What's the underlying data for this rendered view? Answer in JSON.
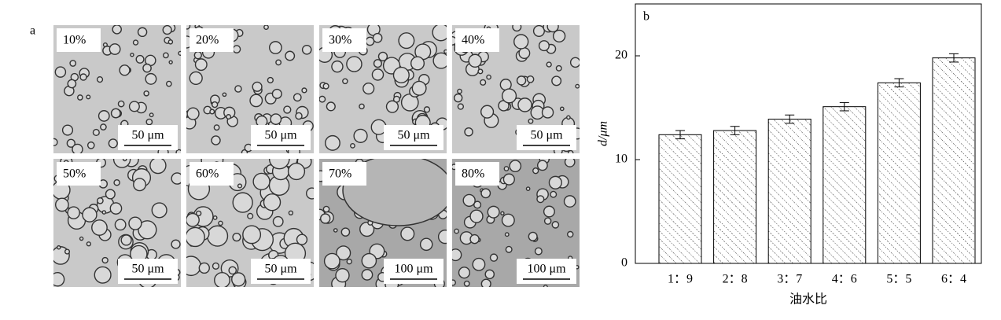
{
  "panel_a": {
    "label": "a",
    "tiles": [
      {
        "label": "10%",
        "scale": "50 μm"
      },
      {
        "label": "20%",
        "scale": "50 μm"
      },
      {
        "label": "30%",
        "scale": "50 μm"
      },
      {
        "label": "40%",
        "scale": "50 μm"
      },
      {
        "label": "50%",
        "scale": "50 μm"
      },
      {
        "label": "60%",
        "scale": "50 μm"
      },
      {
        "label": "70%",
        "scale": "100 μm"
      },
      {
        "label": "80%",
        "scale": "100 μm"
      }
    ]
  },
  "chart_data": {
    "type": "bar",
    "panel_label": "b",
    "categories": [
      "1：9",
      "2：8",
      "3：7",
      "4：6",
      "5：5",
      "6：4"
    ],
    "values": [
      12.4,
      12.8,
      13.9,
      15.1,
      17.4,
      19.8
    ],
    "errors": [
      0.4,
      0.4,
      0.4,
      0.4,
      0.4,
      0.4
    ],
    "ylim": [
      0,
      25
    ],
    "yticks": [
      0,
      10,
      20
    ],
    "x_label": "油水比",
    "y_label": "d/μm"
  }
}
